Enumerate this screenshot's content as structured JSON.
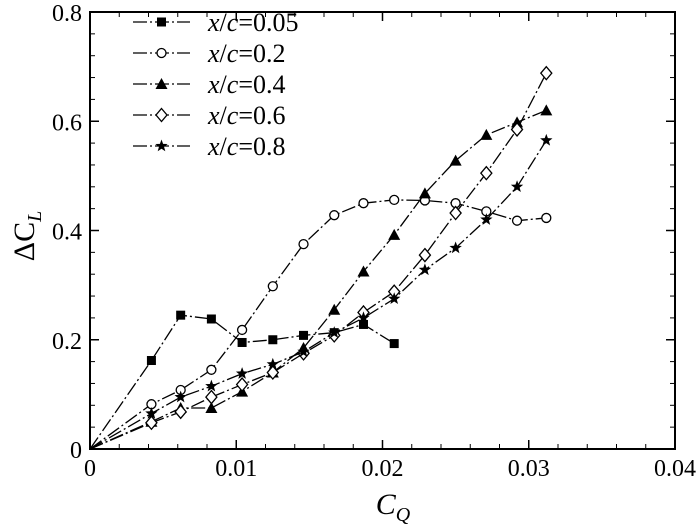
{
  "chart_data": {
    "type": "line",
    "title": "",
    "xlabel": "C_Q",
    "ylabel": "ΔC_L",
    "xlabel_parts": {
      "main": "C",
      "sub": "Q"
    },
    "ylabel_parts": {
      "main": "ΔC",
      "sub": "L"
    },
    "xlim": [
      0,
      0.04
    ],
    "ylim": [
      0,
      0.8
    ],
    "x_ticks": [
      0,
      0.01,
      0.02,
      0.03,
      0.04
    ],
    "x_tick_labels": [
      "0",
      "0.01",
      "0.02",
      "0.03",
      "0.04"
    ],
    "y_ticks": [
      0,
      0.2,
      0.4,
      0.6,
      0.8
    ],
    "y_tick_labels": [
      "0",
      "0.2",
      "0.4",
      "0.6",
      "0.8"
    ],
    "grid": false,
    "legend_position": "top-left",
    "line_style": "dash-dot",
    "series": [
      {
        "name": "x/c=0.05",
        "legend_parts": [
          "x",
          "/",
          "c",
          "=0.05"
        ],
        "marker": "filled-square",
        "x": [
          0,
          0.0042,
          0.0062,
          0.0083,
          0.0104,
          0.0125,
          0.0146,
          0.0167,
          0.0187,
          0.0208
        ],
        "y": [
          0,
          0.162,
          0.245,
          0.238,
          0.195,
          0.2,
          0.208,
          0.213,
          0.228,
          0.193
        ]
      },
      {
        "name": "x/c=0.2",
        "legend_parts": [
          "x",
          "/",
          "c",
          "=0.2"
        ],
        "marker": "open-circle",
        "x": [
          0,
          0.0042,
          0.0062,
          0.0083,
          0.0104,
          0.0125,
          0.0146,
          0.0167,
          0.0187,
          0.0208,
          0.0229,
          0.025,
          0.0271,
          0.0292,
          0.0312
        ],
        "y": [
          0,
          0.082,
          0.108,
          0.145,
          0.218,
          0.298,
          0.375,
          0.428,
          0.45,
          0.456,
          0.455,
          0.45,
          0.435,
          0.418,
          0.423
        ]
      },
      {
        "name": "x/c=0.4",
        "legend_parts": [
          "x",
          "/",
          "c",
          "=0.4"
        ],
        "marker": "filled-triangle",
        "x": [
          0,
          0.0042,
          0.0062,
          0.0083,
          0.0104,
          0.0125,
          0.0146,
          0.0167,
          0.0187,
          0.0208,
          0.0229,
          0.025,
          0.0271,
          0.0292,
          0.0312
        ],
        "y": [
          0,
          0.05,
          0.075,
          0.075,
          0.105,
          0.14,
          0.185,
          0.255,
          0.325,
          0.392,
          0.468,
          0.528,
          0.575,
          0.598,
          0.62
        ]
      },
      {
        "name": "x/c=0.6",
        "legend_parts": [
          "x",
          "/",
          "c",
          "=0.6"
        ],
        "marker": "open-diamond",
        "x": [
          0,
          0.0042,
          0.0062,
          0.0083,
          0.0104,
          0.0125,
          0.0146,
          0.0167,
          0.0187,
          0.0208,
          0.0229,
          0.025,
          0.0271,
          0.0292,
          0.0312
        ],
        "y": [
          0,
          0.048,
          0.068,
          0.095,
          0.118,
          0.14,
          0.175,
          0.208,
          0.25,
          0.288,
          0.355,
          0.432,
          0.505,
          0.585,
          0.688
        ]
      },
      {
        "name": "x/c=0.8",
        "legend_parts": [
          "x",
          "/",
          "c",
          "=0.8"
        ],
        "marker": "filled-star",
        "x": [
          0,
          0.0042,
          0.0062,
          0.0083,
          0.0104,
          0.0125,
          0.0146,
          0.0167,
          0.0187,
          0.0208,
          0.0229,
          0.025,
          0.0271,
          0.0292,
          0.0312
        ],
        "y": [
          0,
          0.065,
          0.095,
          0.115,
          0.138,
          0.155,
          0.178,
          0.213,
          0.24,
          0.275,
          0.328,
          0.368,
          0.42,
          0.48,
          0.565
        ]
      }
    ]
  }
}
